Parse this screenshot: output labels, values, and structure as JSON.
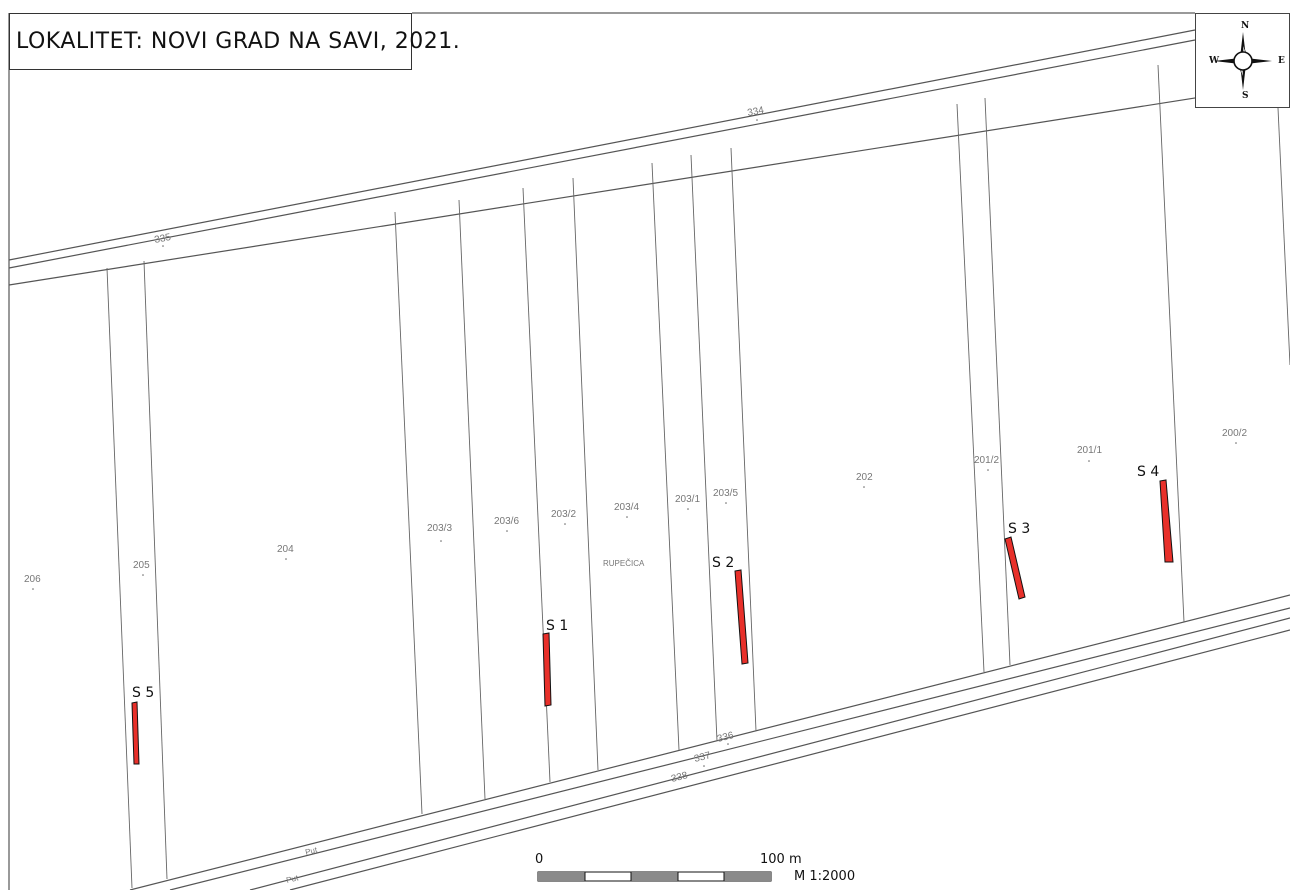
{
  "title": "LOKALITET: NOVI GRAD NA SAVI, 2021.",
  "compass": {
    "icon": "compass-rose-icon",
    "n": "N",
    "s": "S",
    "e": "E",
    "w": "W"
  },
  "parcels": {
    "p334": "334",
    "p335": "335",
    "p336": "336",
    "p337": "337",
    "p338": "338",
    "p206": "206",
    "p205": "205",
    "p204": "204",
    "p203_3": "203/3",
    "p203_6": "203/6",
    "p203_2": "203/2",
    "p203_4": "203/4",
    "p203_1": "203/1",
    "p203_5": "203/5",
    "p202": "202",
    "p201_2": "201/2",
    "p201_1": "201/1",
    "p200_2": "200/2",
    "rupecica": "RUPEČICA",
    "put1": "Put",
    "put2": "Put"
  },
  "sondaze": {
    "s1": "S 1",
    "s2": "S 2",
    "s3": "S 3",
    "s4": "S 4",
    "s5": "S 5"
  },
  "scale": {
    "start": "0",
    "end": "100 m",
    "ratio": "M 1:2000"
  },
  "colors": {
    "trench_fill": "#e8302a",
    "scale_dark": "#8a8a8a",
    "parcel_line": "#555555"
  }
}
